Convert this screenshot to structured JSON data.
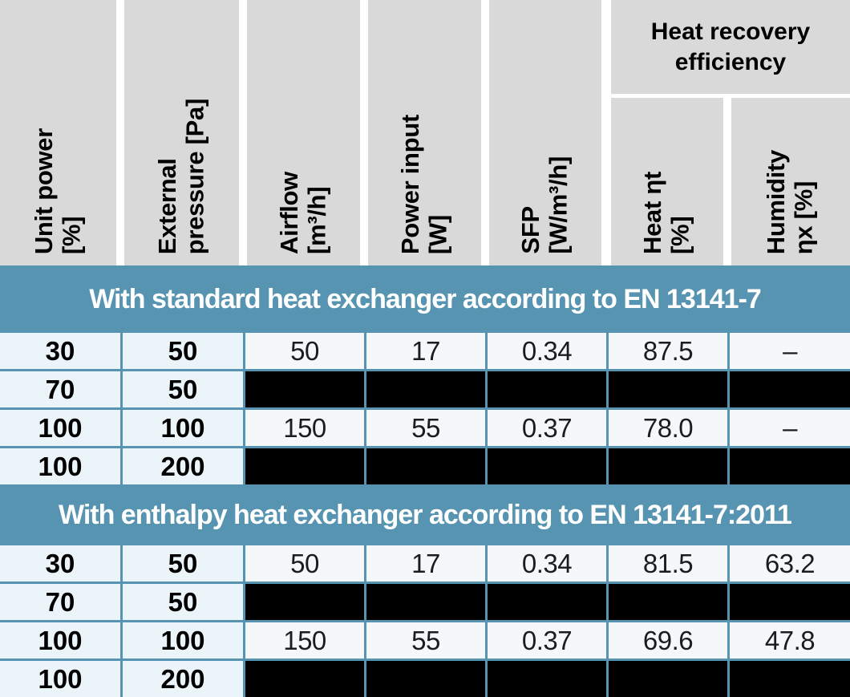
{
  "columns": [
    {
      "lines": "Unit power\n[%]"
    },
    {
      "lines": "External\npressure [Pa]"
    },
    {
      "lines": "Airflow\n[m³/h]"
    },
    {
      "lines": "Power input\n[W]"
    },
    {
      "lines": "SFP\n[W/m³/h]"
    },
    {
      "lines": "Heat ηt\n[%]"
    },
    {
      "lines": "Humidity\nηx [%]"
    }
  ],
  "group_header": "Heat recovery\nefficiency",
  "sections": [
    {
      "title": "With standard heat exchanger according to EN 13141-7",
      "rows": [
        [
          "30",
          "50",
          "50",
          "17",
          "0.34",
          "87.5",
          "–"
        ],
        [
          "70",
          "50",
          null,
          null,
          null,
          null,
          null
        ],
        [
          "100",
          "100",
          "150",
          "55",
          "0.37",
          "78.0",
          "–"
        ],
        [
          "100",
          "200",
          null,
          null,
          null,
          null,
          null
        ]
      ]
    },
    {
      "title": "With enthalpy heat exchanger according to EN 13141-7:2011",
      "rows": [
        [
          "30",
          "50",
          "50",
          "17",
          "0.34",
          "81.5",
          "63.2"
        ],
        [
          "70",
          "50",
          null,
          null,
          null,
          null,
          null
        ],
        [
          "100",
          "100",
          "150",
          "55",
          "0.37",
          "69.6",
          "47.8"
        ],
        [
          "100",
          "200",
          null,
          null,
          null,
          null,
          null
        ]
      ]
    }
  ],
  "colors": {
    "band_blue": "#5794b1",
    "header_grey": "#d9d9d9",
    "key_cell_bg": "#ebf4f9",
    "value_cell_bg": "#f5f8fa",
    "redacted_black": "#000000"
  }
}
